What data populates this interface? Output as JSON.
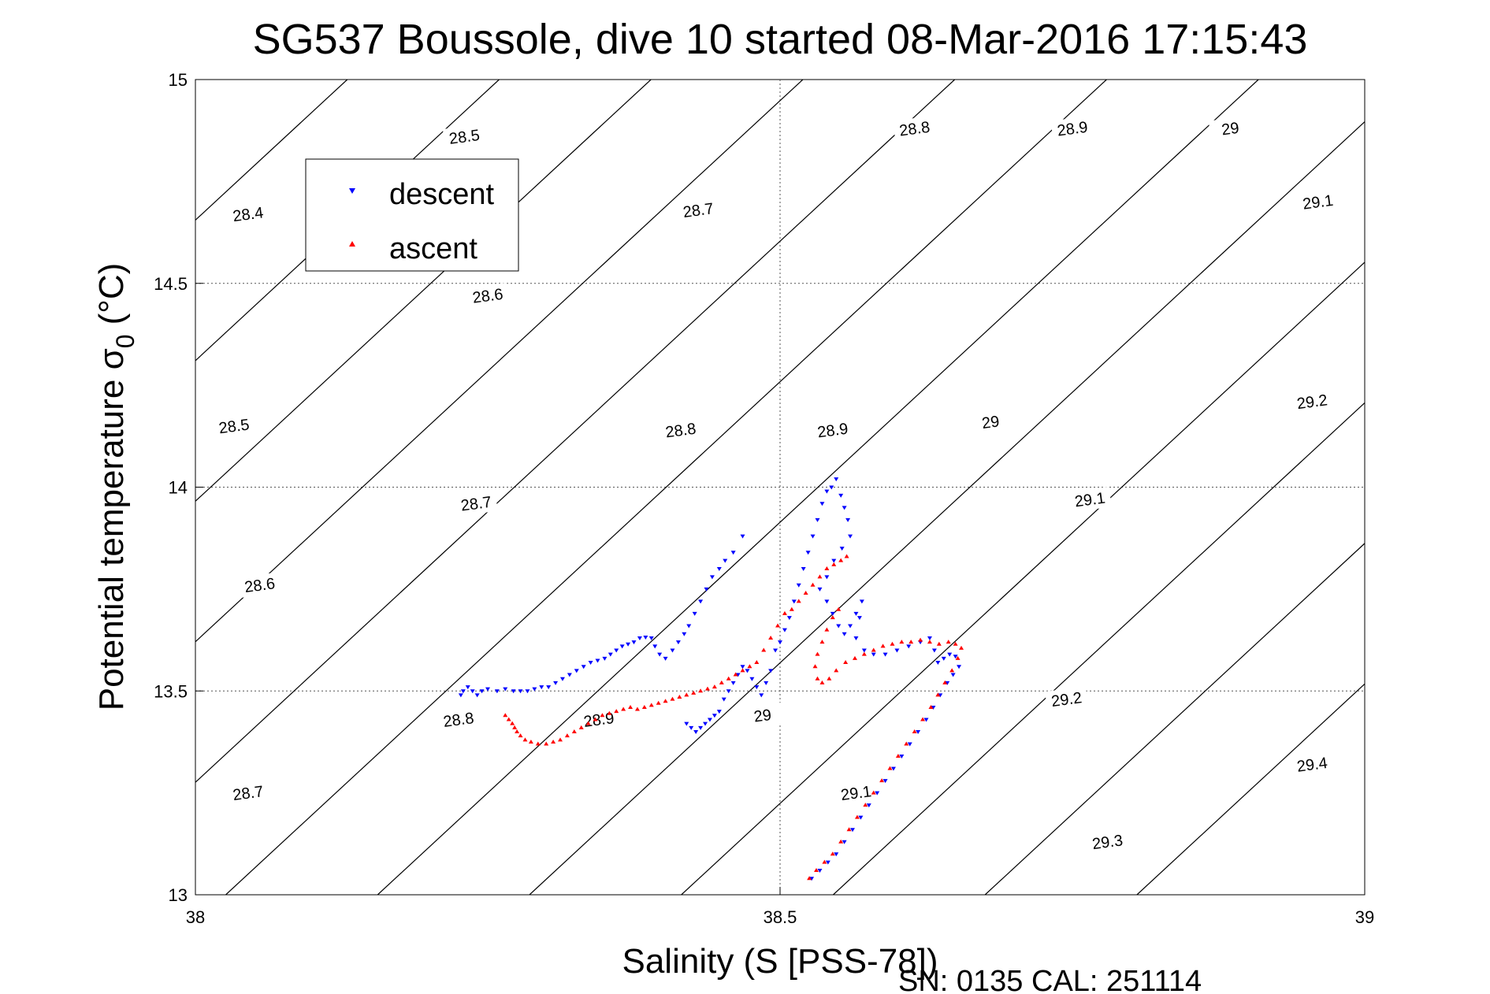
{
  "chart_data": {
    "type": "scatter",
    "title": "SG537 Boussole, dive 10 started 08-Mar-2016 17:15:43",
    "xlabel": "Salinity (S [PSS-78])",
    "ylabel_main": "Potential temperature σ",
    "ylabel_sub": "0",
    "ylabel_unit": "(°C)",
    "xlim": [
      38,
      39
    ],
    "ylim": [
      13,
      15
    ],
    "xticks": [
      38,
      38.5,
      39
    ],
    "xtick_labels": [
      "38",
      "38.5",
      "39"
    ],
    "yticks": [
      13,
      13.5,
      14,
      14.5,
      15
    ],
    "ytick_labels": [
      "13",
      "13.5",
      "14",
      "14.5",
      "15"
    ],
    "grid": true,
    "legend_position": "upper-left",
    "footer": "SN: 0135  CAL: 251114",
    "isopycnal_levels": [
      28.4,
      28.5,
      28.6,
      28.7,
      28.8,
      28.9,
      29,
      29.1,
      29.2,
      29.3,
      29.4
    ],
    "isopycnal_labels": [
      {
        "text": "28.4",
        "x": 38.045,
        "y": 14.67
      },
      {
        "text": "28.5",
        "x": 38.23,
        "y": 14.86
      },
      {
        "text": "28.5",
        "x": 38.033,
        "y": 14.15
      },
      {
        "text": "28.6",
        "x": 38.25,
        "y": 14.47
      },
      {
        "text": "28.6",
        "x": 38.055,
        "y": 13.76
      },
      {
        "text": "28.7",
        "x": 38.43,
        "y": 14.68
      },
      {
        "text": "28.7",
        "x": 38.24,
        "y": 13.96
      },
      {
        "text": "28.7",
        "x": 38.045,
        "y": 13.25
      },
      {
        "text": "28.8",
        "x": 38.615,
        "y": 14.88
      },
      {
        "text": "28.8",
        "x": 38.415,
        "y": 14.14
      },
      {
        "text": "28.8",
        "x": 38.225,
        "y": 13.43
      },
      {
        "text": "28.9",
        "x": 38.75,
        "y": 14.88
      },
      {
        "text": "28.9",
        "x": 38.545,
        "y": 14.14
      },
      {
        "text": "28.9",
        "x": 38.345,
        "y": 13.43
      },
      {
        "text": "29",
        "x": 38.885,
        "y": 14.88
      },
      {
        "text": "29",
        "x": 38.68,
        "y": 14.16
      },
      {
        "text": "29",
        "x": 38.485,
        "y": 13.44
      },
      {
        "text": "29.1",
        "x": 38.96,
        "y": 14.7
      },
      {
        "text": "29.1",
        "x": 38.765,
        "y": 13.97
      },
      {
        "text": "29.1",
        "x": 38.565,
        "y": 13.25
      },
      {
        "text": "29.2",
        "x": 38.955,
        "y": 14.21
      },
      {
        "text": "29.2",
        "x": 38.745,
        "y": 13.48
      },
      {
        "text": "29.3",
        "x": 38.78,
        "y": 13.13
      },
      {
        "text": "29.4",
        "x": 38.955,
        "y": 13.32
      }
    ],
    "series": [
      {
        "name": "descent",
        "color": "#0000ff",
        "marker": "triangle-down",
        "points": [
          [
            38.227,
            13.49
          ],
          [
            38.229,
            13.5
          ],
          [
            38.233,
            13.51
          ],
          [
            38.237,
            13.5
          ],
          [
            38.241,
            13.49
          ],
          [
            38.245,
            13.5
          ],
          [
            38.25,
            13.505
          ],
          [
            38.258,
            13.5
          ],
          [
            38.265,
            13.505
          ],
          [
            38.272,
            13.5
          ],
          [
            38.278,
            13.5
          ],
          [
            38.284,
            13.5
          ],
          [
            38.29,
            13.505
          ],
          [
            38.296,
            13.51
          ],
          [
            38.302,
            13.51
          ],
          [
            38.308,
            13.52
          ],
          [
            38.314,
            13.53
          ],
          [
            38.32,
            13.54
          ],
          [
            38.326,
            13.55
          ],
          [
            38.332,
            13.56
          ],
          [
            38.338,
            13.57
          ],
          [
            38.344,
            13.575
          ],
          [
            38.35,
            13.58
          ],
          [
            38.355,
            13.59
          ],
          [
            38.36,
            13.6
          ],
          [
            38.365,
            13.61
          ],
          [
            38.37,
            13.615
          ],
          [
            38.375,
            13.62
          ],
          [
            38.38,
            13.63
          ],
          [
            38.385,
            13.632
          ],
          [
            38.39,
            13.63
          ],
          [
            38.393,
            13.61
          ],
          [
            38.397,
            13.59
          ],
          [
            38.402,
            13.58
          ],
          [
            38.408,
            13.6
          ],
          [
            38.413,
            13.62
          ],
          [
            38.418,
            13.64
          ],
          [
            38.422,
            13.66
          ],
          [
            38.427,
            13.69
          ],
          [
            38.432,
            13.72
          ],
          [
            38.437,
            13.75
          ],
          [
            38.442,
            13.78
          ],
          [
            38.448,
            13.8
          ],
          [
            38.453,
            13.82
          ],
          [
            38.46,
            13.84
          ],
          [
            38.468,
            13.88
          ],
          [
            38.42,
            13.42
          ],
          [
            38.424,
            13.41
          ],
          [
            38.428,
            13.4
          ],
          [
            38.432,
            13.41
          ],
          [
            38.436,
            13.42
          ],
          [
            38.44,
            13.43
          ],
          [
            38.444,
            13.44
          ],
          [
            38.448,
            13.45
          ],
          [
            38.452,
            13.48
          ],
          [
            38.456,
            13.5
          ],
          [
            38.46,
            13.52
          ],
          [
            38.464,
            13.54
          ],
          [
            38.468,
            13.56
          ],
          [
            38.472,
            13.55
          ],
          [
            38.476,
            13.53
          ],
          [
            38.48,
            13.51
          ],
          [
            38.484,
            13.49
          ],
          [
            38.488,
            13.52
          ],
          [
            38.492,
            13.55
          ],
          [
            38.496,
            13.6
          ],
          [
            38.5,
            13.62
          ],
          [
            38.504,
            13.65
          ],
          [
            38.508,
            13.68
          ],
          [
            38.512,
            13.72
          ],
          [
            38.516,
            13.76
          ],
          [
            38.52,
            13.8
          ],
          [
            38.524,
            13.84
          ],
          [
            38.528,
            13.88
          ],
          [
            38.532,
            13.92
          ],
          [
            38.536,
            13.96
          ],
          [
            38.54,
            13.99
          ],
          [
            38.544,
            14.0
          ],
          [
            38.548,
            14.02
          ],
          [
            38.552,
            13.98
          ],
          [
            38.555,
            13.95
          ],
          [
            38.558,
            13.92
          ],
          [
            38.56,
            13.88
          ],
          [
            38.553,
            13.85
          ],
          [
            38.546,
            13.82
          ],
          [
            38.54,
            13.78
          ],
          [
            38.534,
            13.75
          ],
          [
            38.54,
            13.72
          ],
          [
            38.545,
            13.69
          ],
          [
            38.55,
            13.66
          ],
          [
            38.555,
            13.64
          ],
          [
            38.56,
            13.66
          ],
          [
            38.565,
            13.69
          ],
          [
            38.57,
            13.72
          ],
          [
            38.568,
            13.68
          ],
          [
            38.565,
            13.63
          ],
          [
            38.572,
            13.6
          ],
          [
            38.58,
            13.59
          ],
          [
            38.59,
            13.59
          ],
          [
            38.6,
            13.6
          ],
          [
            38.61,
            13.61
          ],
          [
            38.62,
            13.62
          ],
          [
            38.628,
            13.63
          ],
          [
            38.632,
            13.6
          ],
          [
            38.635,
            13.57
          ],
          [
            38.64,
            13.58
          ],
          [
            38.645,
            13.59
          ],
          [
            38.65,
            13.585
          ],
          [
            38.653,
            13.56
          ],
          [
            38.648,
            13.54
          ],
          [
            38.643,
            13.52
          ],
          [
            38.637,
            13.49
          ],
          [
            38.631,
            13.46
          ],
          [
            38.625,
            13.43
          ],
          [
            38.618,
            13.4
          ],
          [
            38.611,
            13.37
          ],
          [
            38.604,
            13.34
          ],
          [
            38.597,
            13.31
          ],
          [
            38.59,
            13.28
          ],
          [
            38.583,
            13.25
          ],
          [
            38.576,
            13.22
          ],
          [
            38.569,
            13.19
          ],
          [
            38.562,
            13.16
          ],
          [
            38.555,
            13.13
          ],
          [
            38.548,
            13.1
          ],
          [
            38.541,
            13.08
          ],
          [
            38.534,
            13.06
          ],
          [
            38.527,
            13.04
          ]
        ]
      },
      {
        "name": "ascent",
        "color": "#ff0000",
        "marker": "triangle-up",
        "points": [
          [
            38.265,
            13.44
          ],
          [
            38.268,
            13.43
          ],
          [
            38.271,
            13.42
          ],
          [
            38.273,
            13.41
          ],
          [
            38.275,
            13.4
          ],
          [
            38.278,
            13.39
          ],
          [
            38.282,
            13.38
          ],
          [
            38.287,
            13.375
          ],
          [
            38.293,
            13.37
          ],
          [
            38.3,
            13.37
          ],
          [
            38.306,
            13.375
          ],
          [
            38.312,
            13.38
          ],
          [
            38.318,
            13.39
          ],
          [
            38.324,
            13.4
          ],
          [
            38.33,
            13.41
          ],
          [
            38.336,
            13.42
          ],
          [
            38.342,
            13.43
          ],
          [
            38.348,
            13.44
          ],
          [
            38.354,
            13.445
          ],
          [
            38.36,
            13.45
          ],
          [
            38.366,
            13.455
          ],
          [
            38.372,
            13.46
          ],
          [
            38.378,
            13.455
          ],
          [
            38.384,
            13.46
          ],
          [
            38.39,
            13.465
          ],
          [
            38.396,
            13.47
          ],
          [
            38.402,
            13.475
          ],
          [
            38.408,
            13.48
          ],
          [
            38.414,
            13.485
          ],
          [
            38.42,
            13.49
          ],
          [
            38.426,
            13.495
          ],
          [
            38.432,
            13.5
          ],
          [
            38.438,
            13.505
          ],
          [
            38.444,
            13.51
          ],
          [
            38.45,
            13.52
          ],
          [
            38.456,
            13.53
          ],
          [
            38.462,
            13.54
          ],
          [
            38.468,
            13.55
          ],
          [
            38.474,
            13.56
          ],
          [
            38.48,
            13.57
          ],
          [
            38.486,
            13.6
          ],
          [
            38.492,
            13.63
          ],
          [
            38.498,
            13.66
          ],
          [
            38.504,
            13.69
          ],
          [
            38.51,
            13.7
          ],
          [
            38.516,
            13.72
          ],
          [
            38.522,
            13.74
          ],
          [
            38.528,
            13.76
          ],
          [
            38.534,
            13.78
          ],
          [
            38.54,
            13.8
          ],
          [
            38.546,
            13.81
          ],
          [
            38.552,
            13.82
          ],
          [
            38.557,
            13.83
          ],
          [
            38.55,
            13.7
          ],
          [
            38.545,
            13.68
          ],
          [
            38.54,
            13.65
          ],
          [
            38.536,
            13.62
          ],
          [
            38.532,
            13.59
          ],
          [
            38.53,
            13.56
          ],
          [
            38.532,
            13.53
          ],
          [
            38.536,
            13.52
          ],
          [
            38.542,
            13.53
          ],
          [
            38.548,
            13.55
          ],
          [
            38.556,
            13.57
          ],
          [
            38.564,
            13.58
          ],
          [
            38.572,
            13.59
          ],
          [
            38.58,
            13.6
          ],
          [
            38.588,
            13.61
          ],
          [
            38.596,
            13.615
          ],
          [
            38.604,
            13.62
          ],
          [
            38.612,
            13.62
          ],
          [
            38.62,
            13.625
          ],
          [
            38.628,
            13.62
          ],
          [
            38.636,
            13.615
          ],
          [
            38.644,
            13.62
          ],
          [
            38.65,
            13.615
          ],
          [
            38.655,
            13.605
          ],
          [
            38.652,
            13.58
          ],
          [
            38.647,
            13.55
          ],
          [
            38.641,
            13.52
          ],
          [
            38.635,
            13.49
          ],
          [
            38.629,
            13.46
          ],
          [
            38.622,
            13.43
          ],
          [
            38.615,
            13.4
          ],
          [
            38.608,
            13.37
          ],
          [
            38.601,
            13.34
          ],
          [
            38.594,
            13.31
          ],
          [
            38.587,
            13.28
          ],
          [
            38.58,
            13.25
          ],
          [
            38.573,
            13.22
          ],
          [
            38.566,
            13.19
          ],
          [
            38.559,
            13.16
          ],
          [
            38.552,
            13.13
          ],
          [
            38.545,
            13.1
          ],
          [
            38.538,
            13.08
          ],
          [
            38.531,
            13.06
          ],
          [
            38.525,
            13.04
          ]
        ]
      }
    ]
  }
}
